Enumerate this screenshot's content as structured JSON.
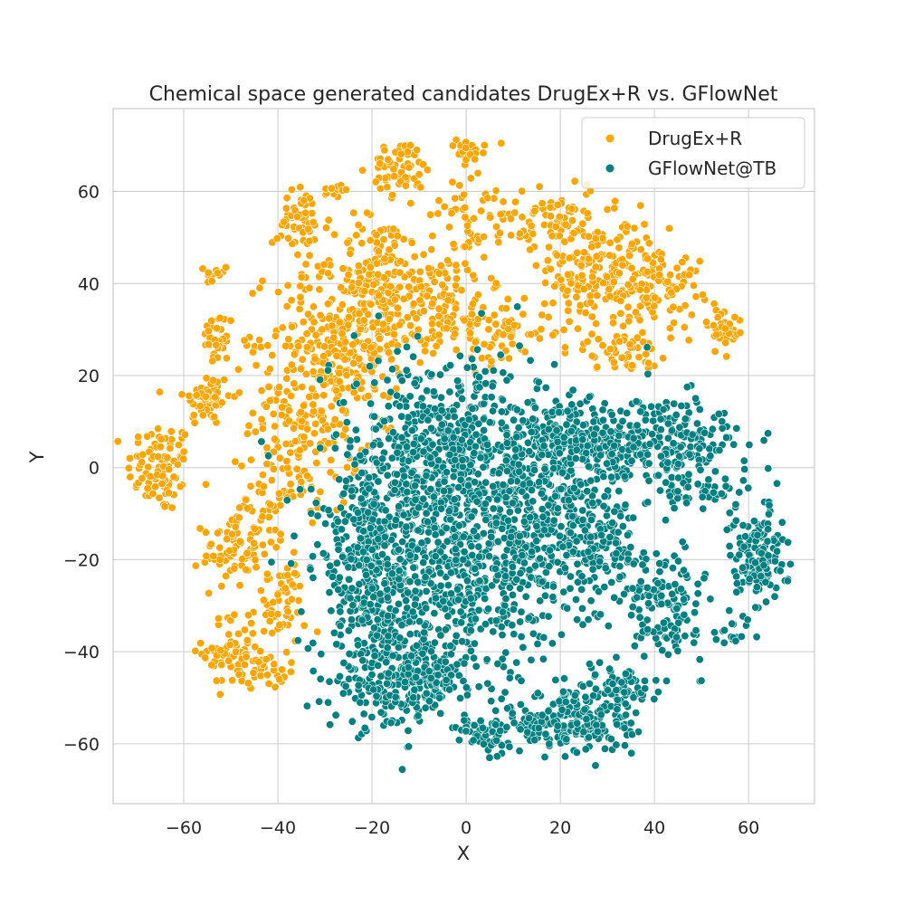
{
  "chart_data": {
    "type": "scatter",
    "title": "Chemical space generated candidates DrugEx+R vs. GFlowNet",
    "xlabel": "X",
    "ylabel": "Y",
    "xlim": [
      -75,
      74
    ],
    "ylim": [
      -73,
      78
    ],
    "x_ticks": [
      -60,
      -40,
      -20,
      0,
      20,
      40,
      60
    ],
    "y_ticks": [
      -60,
      -40,
      -20,
      0,
      20,
      40,
      60
    ],
    "x_tick_labels": [
      "−60",
      "−40",
      "−20",
      "0",
      "20",
      "40",
      "60"
    ],
    "y_tick_labels": [
      "−60",
      "−40",
      "−20",
      "0",
      "20",
      "40",
      "60"
    ],
    "grid": true,
    "legend_position": "top-right",
    "series": [
      {
        "name": "DrugEx+R",
        "color": "#FFA500",
        "clusters": [
          {
            "cx": -65,
            "cy": 0,
            "sx": 3.5,
            "sy": 5,
            "n": 90
          },
          {
            "cx": -55,
            "cy": 15,
            "sx": 2.5,
            "sy": 3,
            "n": 60
          },
          {
            "cx": -53,
            "cy": 28,
            "sx": 1.5,
            "sy": 3,
            "n": 35
          },
          {
            "cx": -53,
            "cy": 42,
            "sx": 1.2,
            "sy": 1.2,
            "n": 12
          },
          {
            "cx": -50,
            "cy": -18,
            "sx": 3,
            "sy": 4,
            "n": 70
          },
          {
            "cx": -50,
            "cy": -40,
            "sx": 3,
            "sy": 4,
            "n": 60
          },
          {
            "cx": -43,
            "cy": -44,
            "sx": 2.5,
            "sy": 2,
            "n": 35
          },
          {
            "cx": -40,
            "cy": -30,
            "sx": 3,
            "sy": 5,
            "n": 60
          },
          {
            "cx": -42,
            "cy": -10,
            "sx": 3,
            "sy": 4,
            "n": 45
          },
          {
            "cx": -35,
            "cy": 53,
            "sx": 3,
            "sy": 4,
            "n": 55
          },
          {
            "cx": -34,
            "cy": 10,
            "sx": 6,
            "sy": 10,
            "n": 200
          },
          {
            "cx": -25,
            "cy": 30,
            "sx": 8,
            "sy": 8,
            "n": 280
          },
          {
            "cx": -18,
            "cy": 45,
            "sx": 5,
            "sy": 5,
            "n": 80
          },
          {
            "cx": -14,
            "cy": 65,
            "sx": 3,
            "sy": 3,
            "n": 60
          },
          {
            "cx": -8,
            "cy": 38,
            "sx": 6,
            "sy": 5,
            "n": 100
          },
          {
            "cx": 2,
            "cy": 55,
            "sx": 5,
            "sy": 6,
            "n": 70
          },
          {
            "cx": 0,
            "cy": 68,
            "sx": 2,
            "sy": 1.5,
            "n": 20
          },
          {
            "cx": 5,
            "cy": 30,
            "sx": 7,
            "sy": 4,
            "n": 90
          },
          {
            "cx": 20,
            "cy": 55,
            "sx": 4,
            "sy": 4,
            "n": 60
          },
          {
            "cx": 28,
            "cy": 42,
            "sx": 6,
            "sy": 6,
            "n": 180
          },
          {
            "cx": 40,
            "cy": 40,
            "sx": 5,
            "sy": 5,
            "n": 100
          },
          {
            "cx": 33,
            "cy": 25,
            "sx": 4,
            "sy": 2,
            "n": 50
          },
          {
            "cx": 55,
            "cy": 30,
            "sx": 2,
            "sy": 2.5,
            "n": 40
          },
          {
            "cx": -28,
            "cy": 60,
            "sx": 1.5,
            "sy": 1,
            "n": 15
          },
          {
            "cx": 12,
            "cy": 50,
            "sx": 1.2,
            "sy": 1,
            "n": 10
          }
        ]
      },
      {
        "name": "GFlowNet@TB",
        "color": "#008080",
        "clusters": [
          {
            "cx": -5,
            "cy": 0,
            "sx": 12,
            "sy": 12,
            "n": 750
          },
          {
            "cx": -20,
            "cy": -22,
            "sx": 6,
            "sy": 9,
            "n": 300
          },
          {
            "cx": -15,
            "cy": -45,
            "sx": 7,
            "sy": 6,
            "n": 280
          },
          {
            "cx": 0,
            "cy": -25,
            "sx": 8,
            "sy": 10,
            "n": 320
          },
          {
            "cx": 18,
            "cy": -15,
            "sx": 8,
            "sy": 10,
            "n": 320
          },
          {
            "cx": 20,
            "cy": 5,
            "sx": 8,
            "sy": 5,
            "n": 220
          },
          {
            "cx": 40,
            "cy": 5,
            "sx": 10,
            "sy": 5,
            "n": 280
          },
          {
            "cx": 30,
            "cy": -15,
            "sx": 4,
            "sy": 5,
            "n": 80
          },
          {
            "cx": 42,
            "cy": -30,
            "sx": 4,
            "sy": 6,
            "n": 140
          },
          {
            "cx": 62,
            "cy": -20,
            "sx": 3,
            "sy": 6,
            "n": 140
          },
          {
            "cx": 22,
            "cy": -55,
            "sx": 7,
            "sy": 4,
            "n": 220
          },
          {
            "cx": 5,
            "cy": -58,
            "sx": 3,
            "sy": 2,
            "n": 50
          },
          {
            "cx": 32,
            "cy": -48,
            "sx": 4,
            "sy": 3,
            "n": 60
          },
          {
            "cx": 50,
            "cy": -5,
            "sx": 4,
            "sy": 2,
            "n": 40
          },
          {
            "cx": -5,
            "cy": -45,
            "sx": 3,
            "sy": 3,
            "n": 45
          },
          {
            "cx": 55,
            "cy": -37,
            "sx": 1.5,
            "sy": 1.5,
            "n": 12
          }
        ]
      }
    ]
  }
}
